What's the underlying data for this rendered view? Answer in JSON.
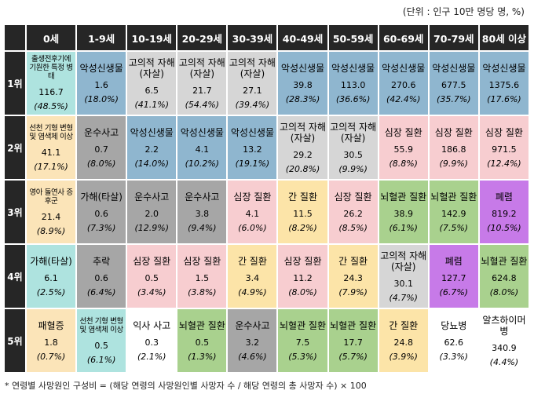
{
  "unit_note": "(단위 : 인구 10만 명당 명, %)",
  "headers": [
    "0세",
    "1-9세",
    "10-19세",
    "20-29세",
    "30-39세",
    "40-49세",
    "50-59세",
    "60-69세",
    "70-79세",
    "80세 이상"
  ],
  "ranks": [
    "1위",
    "2위",
    "3위",
    "4위",
    "5위"
  ],
  "rows": [
    [
      {
        "name": "출생전후기에 기원한 특정 병태",
        "value": "116.7",
        "pct": "(48.5%)",
        "color": "#aee3df",
        "small": true
      },
      {
        "name": "악성신생물",
        "value": "1.6",
        "pct": "(18.0%)",
        "color": "#8fb6cf"
      },
      {
        "name": "고의적 자해(자살)",
        "value": "6.5",
        "pct": "(41.1%)",
        "color": "#d6d6d6"
      },
      {
        "name": "고의적 자해(자살)",
        "value": "21.7",
        "pct": "(54.4%)",
        "color": "#d6d6d6"
      },
      {
        "name": "고의적 자해(자살)",
        "value": "27.1",
        "pct": "(39.4%)",
        "color": "#d6d6d6"
      },
      {
        "name": "악성신생물",
        "value": "39.8",
        "pct": "(28.3%)",
        "color": "#8fb6cf"
      },
      {
        "name": "악성신생물",
        "value": "113.0",
        "pct": "(36.6%)",
        "color": "#8fb6cf"
      },
      {
        "name": "악성신생물",
        "value": "270.6",
        "pct": "(42.4%)",
        "color": "#8fb6cf"
      },
      {
        "name": "악성신생물",
        "value": "677.5",
        "pct": "(35.7%)",
        "color": "#8fb6cf"
      },
      {
        "name": "악성신생물",
        "value": "1375.6",
        "pct": "(17.6%)",
        "color": "#8fb6cf"
      }
    ],
    [
      {
        "name": "선천 기형 변형 및 염색체 이상",
        "value": "41.1",
        "pct": "(17.1%)",
        "color": "#fbe4b8",
        "small": true
      },
      {
        "name": "운수사고",
        "value": "0.7",
        "pct": "(8.0%)",
        "color": "#a6a6a6"
      },
      {
        "name": "악성신생물",
        "value": "2.2",
        "pct": "(14.0%)",
        "color": "#8fb6cf"
      },
      {
        "name": "악성신생물",
        "value": "4.1",
        "pct": "(10.2%)",
        "color": "#8fb6cf"
      },
      {
        "name": "악성신생물",
        "value": "13.2",
        "pct": "(19.1%)",
        "color": "#8fb6cf"
      },
      {
        "name": "고의적 자해(자살)",
        "value": "29.2",
        "pct": "(20.8%)",
        "color": "#d6d6d6"
      },
      {
        "name": "고의적 자해(자살)",
        "value": "30.5",
        "pct": "(9.9%)",
        "color": "#d6d6d6"
      },
      {
        "name": "심장 질환",
        "value": "55.9",
        "pct": "(8.8%)",
        "color": "#f7cdd0"
      },
      {
        "name": "심장 질환",
        "value": "186.8",
        "pct": "(9.9%)",
        "color": "#f7cdd0"
      },
      {
        "name": "심장 질환",
        "value": "971.5",
        "pct": "(12.4%)",
        "color": "#f7cdd0"
      }
    ],
    [
      {
        "name": "영아 돌연사 증후군",
        "value": "21.4",
        "pct": "(8.9%)",
        "color": "#fbe4b8",
        "small": true
      },
      {
        "name": "가해(타살)",
        "value": "0.6",
        "pct": "(7.3%)",
        "color": "#a6a6a6"
      },
      {
        "name": "운수사고",
        "value": "2.0",
        "pct": "(12.9%)",
        "color": "#a6a6a6"
      },
      {
        "name": "운수사고",
        "value": "3.8",
        "pct": "(9.4%)",
        "color": "#a6a6a6"
      },
      {
        "name": "심장 질환",
        "value": "4.1",
        "pct": "(6.0%)",
        "color": "#f7cdd0"
      },
      {
        "name": "간 질환",
        "value": "11.5",
        "pct": "(8.2%)",
        "color": "#fce4a8"
      },
      {
        "name": "심장 질환",
        "value": "26.2",
        "pct": "(8.5%)",
        "color": "#f7cdd0"
      },
      {
        "name": "뇌혈관 질환",
        "value": "38.9",
        "pct": "(6.1%)",
        "color": "#a9d18e"
      },
      {
        "name": "뇌혈관 질환",
        "value": "142.9",
        "pct": "(7.5%)",
        "color": "#a9d18e"
      },
      {
        "name": "폐렴",
        "value": "819.2",
        "pct": "(10.5%)",
        "color": "#c77ae8"
      }
    ],
    [
      {
        "name": "가해(타살)",
        "value": "6.1",
        "pct": "(2.5%)",
        "color": "#aee3df"
      },
      {
        "name": "추락",
        "value": "0.6",
        "pct": "(6.4%)",
        "color": "#a6a6a6"
      },
      {
        "name": "심장 질환",
        "value": "0.5",
        "pct": "(3.4%)",
        "color": "#f7cdd0"
      },
      {
        "name": "심장 질환",
        "value": "1.5",
        "pct": "(3.8%)",
        "color": "#f7cdd0"
      },
      {
        "name": "간 질환",
        "value": "3.4",
        "pct": "(4.9%)",
        "color": "#fce4a8"
      },
      {
        "name": "심장 질환",
        "value": "11.2",
        "pct": "(8.0%)",
        "color": "#f7cdd0"
      },
      {
        "name": "간 질환",
        "value": "24.3",
        "pct": "(7.9%)",
        "color": "#fce4a8"
      },
      {
        "name": "고의적 자해(자살)",
        "value": "30.1",
        "pct": "(4.7%)",
        "color": "#d6d6d6"
      },
      {
        "name": "폐렴",
        "value": "127.7",
        "pct": "(6.7%)",
        "color": "#c77ae8"
      },
      {
        "name": "뇌혈관 질환",
        "value": "624.8",
        "pct": "(8.0%)",
        "color": "#a9d18e"
      }
    ],
    [
      {
        "name": "패혈증",
        "value": "1.8",
        "pct": "(0.7%)",
        "color": "#fbe4b8"
      },
      {
        "name": "선천 기형 변형 및 염색체 이상",
        "value": "0.5",
        "pct": "(6.1%)",
        "color": "#aee3df",
        "small": true
      },
      {
        "name": "익사 사고",
        "value": "0.3",
        "pct": "(2.1%)",
        "color": "#ffffff"
      },
      {
        "name": "뇌혈관 질환",
        "value": "0.5",
        "pct": "(1.3%)",
        "color": "#a9d18e"
      },
      {
        "name": "운수사고",
        "value": "3.2",
        "pct": "(4.6%)",
        "color": "#a6a6a6"
      },
      {
        "name": "뇌혈관 질환",
        "value": "7.5",
        "pct": "(5.3%)",
        "color": "#a9d18e"
      },
      {
        "name": "뇌혈관 질환",
        "value": "17.7",
        "pct": "(5.7%)",
        "color": "#a9d18e"
      },
      {
        "name": "간 질환",
        "value": "24.8",
        "pct": "(3.9%)",
        "color": "#fce4a8"
      },
      {
        "name": "당뇨병",
        "value": "62.6",
        "pct": "(3.3%)",
        "color": "#ffffff"
      },
      {
        "name": "알츠하이머병",
        "value": "340.9",
        "pct": "(4.4%)",
        "color": "#ffffff"
      }
    ]
  ],
  "footnote": "* 연령별 사망원인 구성비 = (해당 연령의 사망원인별 사망자 수 / 해당 연령의 총 사망자 수) × 100"
}
